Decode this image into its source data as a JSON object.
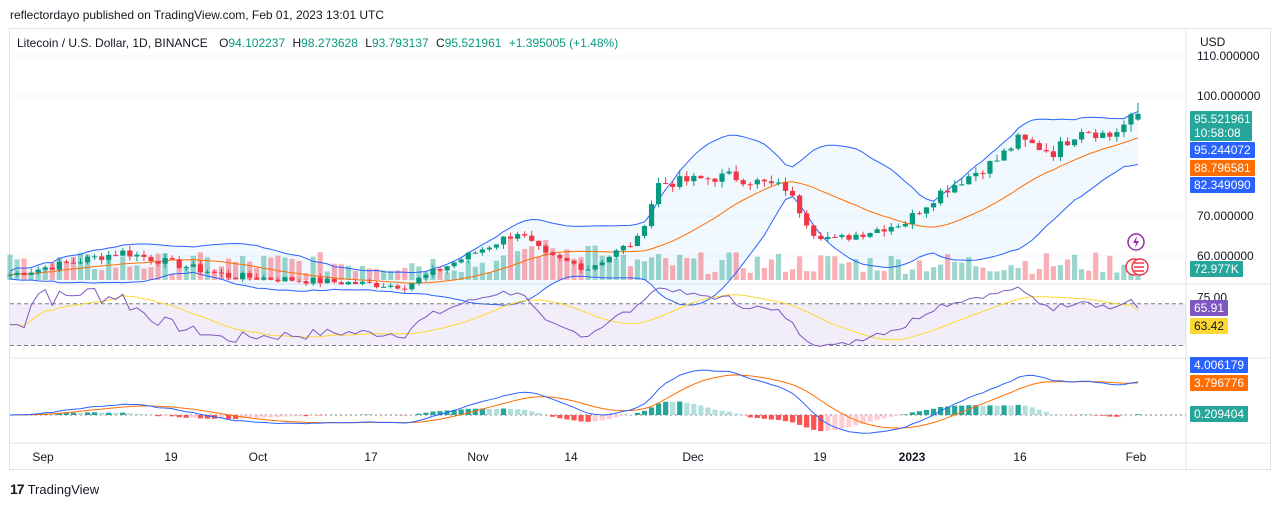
{
  "header": {
    "published": "reflectordayo published on TradingView.com, Feb 01, 2023 13:01 UTC"
  },
  "legend": {
    "symbol": "Litecoin / U.S. Dollar, 1D, BINANCE",
    "open_label": "O",
    "open": "94.102237",
    "high_label": "H",
    "high": "98.273628",
    "low_label": "L",
    "low": "93.793137",
    "close_label": "C",
    "close": "95.521961",
    "change": "+1.395005 (+1.48%)"
  },
  "axis": {
    "currency": "USD",
    "price_ticks": [
      "110.000000",
      "100.000000",
      "70.000000",
      "60.000000"
    ],
    "rsi_ticks": [
      "75.00"
    ],
    "time_ticks": [
      "Sep",
      "19",
      "Oct",
      "17",
      "Nov",
      "14",
      "Dec",
      "19",
      "2023",
      "16",
      "Feb"
    ]
  },
  "badges": {
    "price": "95.521961",
    "countdown": "10:58:08",
    "bb_upper": "95.244072",
    "bb_mid": "88.796581",
    "bb_lower": "82.349090",
    "volume": "72.977K",
    "rsi": "65.91",
    "rsi_ma": "63.42",
    "macd": "4.006179",
    "signal": "3.796776",
    "hist": "0.209404"
  },
  "colors": {
    "up": "#089981",
    "down": "#f23645",
    "bb": "#2962ff",
    "bb_basis": "#ff6d00",
    "rsi": "#7e57c2",
    "rsi_ma": "#fdd835",
    "macd": "#2962ff",
    "signal": "#ff6d00"
  },
  "footer": {
    "brand": "TradingView",
    "logo_icon": "tradingview-logo-icon"
  },
  "chart_data": {
    "type": "candlestick",
    "title": "Litecoin / U.S. Dollar, 1D, BINANCE",
    "ylabel": "USD",
    "ylim": [
      54,
      114
    ],
    "date_range": [
      "2022-08-25",
      "2023-02-01"
    ],
    "anchors": [
      {
        "date": "2022-08-25",
        "close": 55.3
      },
      {
        "date": "2022-09-10",
        "close": 61.0
      },
      {
        "date": "2022-09-25",
        "close": 55.0
      },
      {
        "date": "2022-10-20",
        "close": 52.5
      },
      {
        "date": "2022-11-05",
        "close": 66.0
      },
      {
        "date": "2022-11-09",
        "close": 60.0
      },
      {
        "date": "2022-11-15",
        "close": 57.0
      },
      {
        "date": "2022-11-22",
        "close": 64.0
      },
      {
        "date": "2022-11-25",
        "close": 78.0
      },
      {
        "date": "2022-12-05",
        "close": 80.0
      },
      {
        "date": "2022-12-13",
        "close": 77.0
      },
      {
        "date": "2022-12-17",
        "close": 66.0
      },
      {
        "date": "2022-12-20",
        "close": 64.0
      },
      {
        "date": "2022-12-30",
        "close": 68.5
      },
      {
        "date": "2023-01-04",
        "close": 76.0
      },
      {
        "date": "2023-01-12",
        "close": 84.0
      },
      {
        "date": "2023-01-15",
        "close": 89.0
      },
      {
        "date": "2023-01-20",
        "close": 86.0
      },
      {
        "date": "2023-01-24",
        "close": 92.0
      },
      {
        "date": "2023-01-28",
        "close": 90.0
      },
      {
        "date": "2023-01-31",
        "close": 94.1
      },
      {
        "date": "2023-02-01",
        "close": 95.52
      }
    ],
    "last_candle": {
      "open": 94.102237,
      "high": 98.273628,
      "low": 93.793137,
      "close": 95.521961
    },
    "bollinger_last": {
      "upper": 95.244072,
      "basis": 88.796581,
      "lower": 82.34909
    },
    "volume_last": "72.977K",
    "rsi": {
      "last": 65.91,
      "ma_last": 63.42,
      "bands": [
        70,
        30
      ],
      "ylim": [
        20,
        85
      ]
    },
    "macd": {
      "macd_last": 4.006179,
      "signal_last": 3.796776,
      "hist_last": 0.209404
    }
  }
}
